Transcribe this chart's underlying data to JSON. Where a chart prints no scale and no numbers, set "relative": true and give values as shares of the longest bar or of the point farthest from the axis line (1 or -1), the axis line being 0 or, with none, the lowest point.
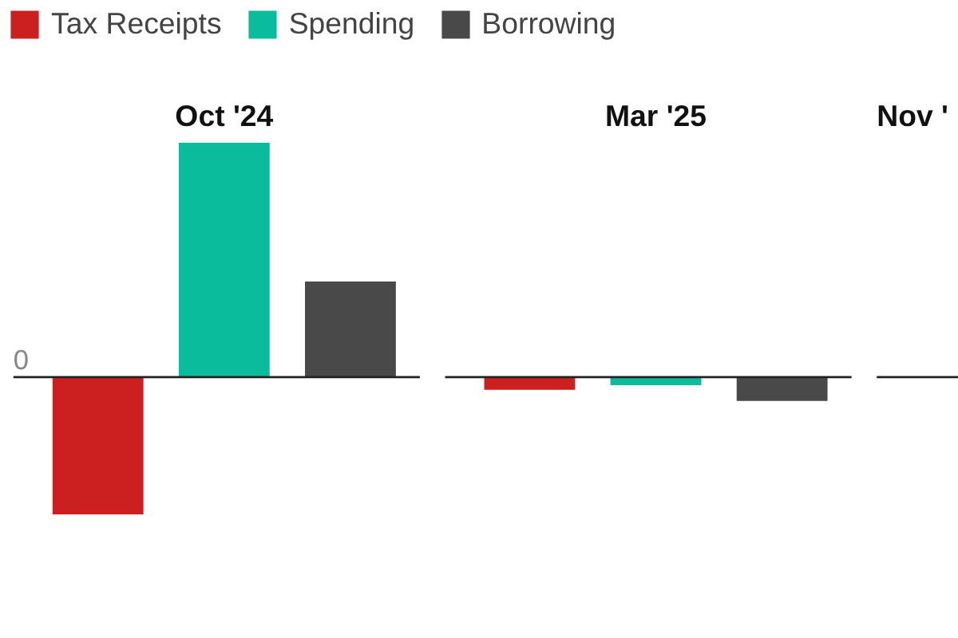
{
  "chart_data": {
    "type": "bar",
    "relative": true,
    "legend": "top left",
    "categories": [
      "Oct '24",
      "Mar '25",
      "Nov '"
    ],
    "series": [
      {
        "name": "Tax Receipts",
        "color": "#cc1f1f",
        "values": [
          -0.585,
          -0.054,
          null
        ]
      },
      {
        "name": "Spending",
        "color": "#0bbc9c",
        "values": [
          1,
          -0.034,
          null
        ]
      },
      {
        "name": "Borrowing",
        "color": "#494949",
        "values": [
          0.408,
          -0.102,
          null
        ]
      }
    ],
    "ref_lines": [
      {
        "axis": "y",
        "value": 0,
        "color": "#222222"
      }
    ],
    "annotations": [
      "0"
    ]
  }
}
